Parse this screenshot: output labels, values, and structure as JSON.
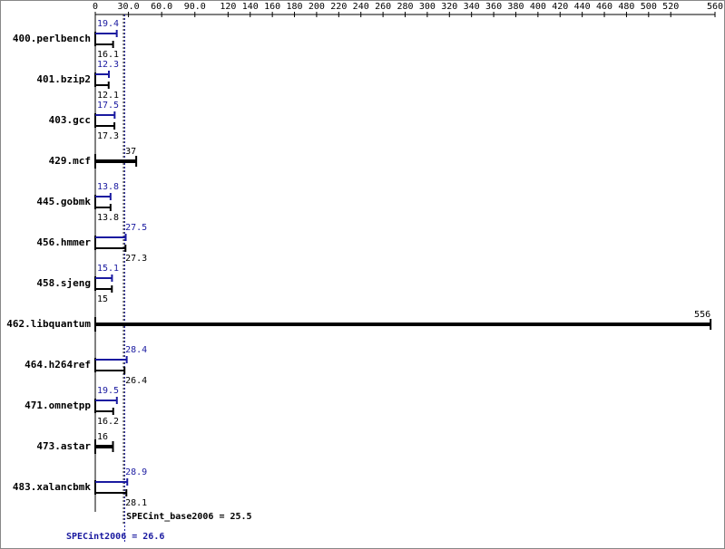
{
  "chart_data": {
    "type": "bar",
    "categories": [
      "400.perlbench",
      "401.bzip2",
      "403.gcc",
      "429.mcf",
      "445.gobmk",
      "456.hmmer",
      "458.sjeng",
      "462.libquantum",
      "464.h264ref",
      "471.omnetpp",
      "473.astar",
      "483.xalancbmk"
    ],
    "peak": {
      "color": "#1a1aa0",
      "values": [
        19.4,
        12.3,
        17.5,
        null,
        13.8,
        27.5,
        15.1,
        null,
        28.4,
        19.5,
        null,
        28.9
      ]
    },
    "base": {
      "color": "#000000",
      "values": [
        16.1,
        12.1,
        17.3,
        37.0,
        13.8,
        27.3,
        15.0,
        556,
        26.4,
        16.2,
        16.0,
        28.1
      ]
    },
    "xlim": [
      0,
      560
    ],
    "xticks": [
      0,
      {
        "value": 30,
        "label": "30.0"
      },
      {
        "value": 60,
        "label": "60.0"
      },
      {
        "value": 90,
        "label": "90.0"
      },
      120,
      140,
      160,
      180,
      200,
      220,
      240,
      260,
      280,
      300,
      320,
      340,
      360,
      380,
      400,
      420,
      440,
      460,
      480,
      500,
      520,
      560
    ],
    "base_mean": {
      "value": 25.5,
      "label": "SPECint_base2006 = 25.5"
    },
    "peak_mean": {
      "value": 26.6,
      "label": "SPECint2006 = 26.6"
    }
  }
}
